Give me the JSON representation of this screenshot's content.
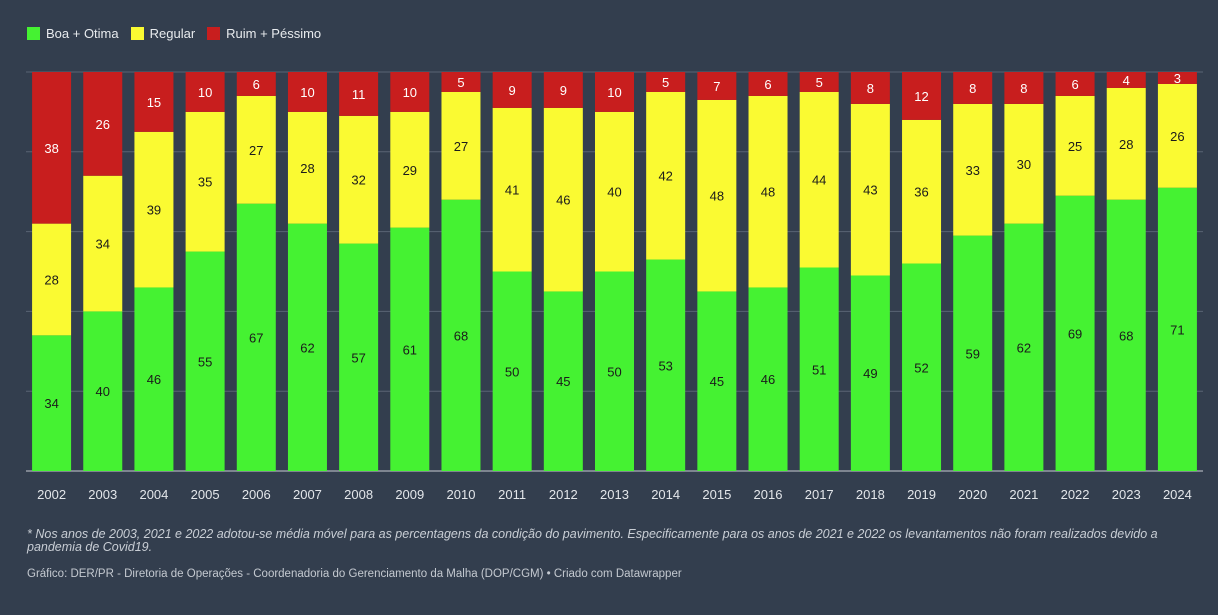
{
  "legend": {
    "items": [
      {
        "label": "Boa + Otima",
        "color": "#45f232"
      },
      {
        "label": "Regular",
        "color": "#fafa32"
      },
      {
        "label": "Ruim + Péssimo",
        "color": "#c81e1e"
      }
    ]
  },
  "chart_data": {
    "type": "bar",
    "stacked": true,
    "categories": [
      "2002",
      "2003",
      "2004",
      "2005",
      "2006",
      "2007",
      "2008",
      "2009",
      "2010",
      "2011",
      "2012",
      "2013",
      "2014",
      "2015",
      "2016",
      "2017",
      "2018",
      "2019",
      "2020",
      "2021",
      "2022",
      "2023",
      "2024"
    ],
    "series": [
      {
        "name": "Boa + Otima",
        "color": "#45f232",
        "values": [
          34,
          40,
          46,
          55,
          67,
          62,
          57,
          61,
          68,
          50,
          45,
          50,
          53,
          45,
          46,
          51,
          49,
          52,
          59,
          62,
          69,
          68,
          71
        ]
      },
      {
        "name": "Regular",
        "color": "#fafa32",
        "values": [
          28,
          34,
          39,
          35,
          27,
          28,
          32,
          29,
          27,
          41,
          46,
          40,
          42,
          48,
          48,
          44,
          43,
          36,
          33,
          30,
          25,
          28,
          26
        ]
      },
      {
        "name": "Ruim + Péssimo",
        "color": "#c81e1e",
        "values": [
          38,
          26,
          15,
          10,
          6,
          10,
          11,
          10,
          5,
          9,
          9,
          10,
          5,
          7,
          6,
          5,
          8,
          12,
          8,
          8,
          6,
          4,
          3
        ]
      }
    ],
    "ylim": [
      0,
      100
    ],
    "grid": true,
    "legend_position": "top-left"
  },
  "footnote": "* Nos anos de 2003, 2021 e 2022 adotou-se média móvel para as percentagens da condição do pavimento. Especificamente para os anos de 2021 e 2022 os levantamentos não foram realizados devido a pandemia de Covid19.",
  "credit": "Gráfico: DER/PR - Diretoria de Operações - Coordenadoria do Gerenciamento da Malha (DOP/CGM) • Criado com Datawrapper"
}
